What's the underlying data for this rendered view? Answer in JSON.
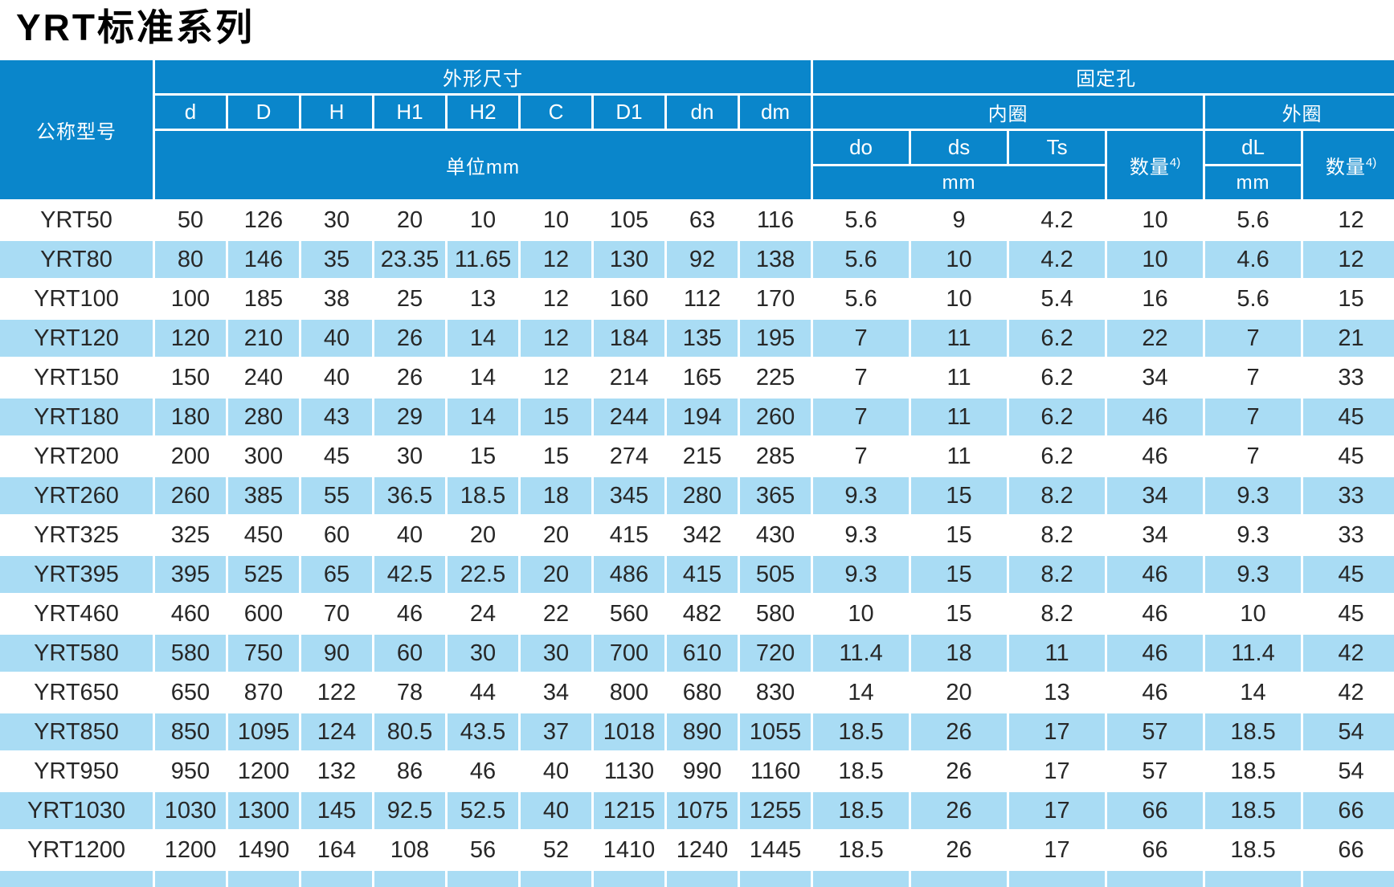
{
  "title": "YRT标准系列",
  "header": {
    "model_col": "公称型号",
    "dims_group": "外形尺寸",
    "holes_group": "固定孔",
    "dim_cols": [
      "d",
      "D",
      "H",
      "H1",
      "H2",
      "C",
      "D1",
      "dn",
      "dm"
    ],
    "dims_unit": "单位mm",
    "inner_ring": "内圈",
    "outer_ring": "外圈",
    "inner_cols": [
      "do",
      "ds",
      "Ts"
    ],
    "outer_col": "dL",
    "qty_label": "数量",
    "qty_superscript": "4)",
    "unit_mm": "mm"
  },
  "rows": [
    {
      "model": "YRT50",
      "values": [
        "50",
        "126",
        "30",
        "20",
        "10",
        "10",
        "105",
        "63",
        "116",
        "5.6",
        "9",
        "4.2",
        "10",
        "5.6",
        "12"
      ]
    },
    {
      "model": "YRT80",
      "values": [
        "80",
        "146",
        "35",
        "23.35",
        "11.65",
        "12",
        "130",
        "92",
        "138",
        "5.6",
        "10",
        "4.2",
        "10",
        "4.6",
        "12"
      ]
    },
    {
      "model": "YRT100",
      "values": [
        "100",
        "185",
        "38",
        "25",
        "13",
        "12",
        "160",
        "112",
        "170",
        "5.6",
        "10",
        "5.4",
        "16",
        "5.6",
        "15"
      ]
    },
    {
      "model": "YRT120",
      "values": [
        "120",
        "210",
        "40",
        "26",
        "14",
        "12",
        "184",
        "135",
        "195",
        "7",
        "11",
        "6.2",
        "22",
        "7",
        "21"
      ]
    },
    {
      "model": "YRT150",
      "values": [
        "150",
        "240",
        "40",
        "26",
        "14",
        "12",
        "214",
        "165",
        "225",
        "7",
        "11",
        "6.2",
        "34",
        "7",
        "33"
      ]
    },
    {
      "model": "YRT180",
      "values": [
        "180",
        "280",
        "43",
        "29",
        "14",
        "15",
        "244",
        "194",
        "260",
        "7",
        "11",
        "6.2",
        "46",
        "7",
        "45"
      ]
    },
    {
      "model": "YRT200",
      "values": [
        "200",
        "300",
        "45",
        "30",
        "15",
        "15",
        "274",
        "215",
        "285",
        "7",
        "11",
        "6.2",
        "46",
        "7",
        "45"
      ]
    },
    {
      "model": "YRT260",
      "values": [
        "260",
        "385",
        "55",
        "36.5",
        "18.5",
        "18",
        "345",
        "280",
        "365",
        "9.3",
        "15",
        "8.2",
        "34",
        "9.3",
        "33"
      ]
    },
    {
      "model": "YRT325",
      "values": [
        "325",
        "450",
        "60",
        "40",
        "20",
        "20",
        "415",
        "342",
        "430",
        "9.3",
        "15",
        "8.2",
        "34",
        "9.3",
        "33"
      ]
    },
    {
      "model": "YRT395",
      "values": [
        "395",
        "525",
        "65",
        "42.5",
        "22.5",
        "20",
        "486",
        "415",
        "505",
        "9.3",
        "15",
        "8.2",
        "46",
        "9.3",
        "45"
      ]
    },
    {
      "model": "YRT460",
      "values": [
        "460",
        "600",
        "70",
        "46",
        "24",
        "22",
        "560",
        "482",
        "580",
        "10",
        "15",
        "8.2",
        "46",
        "10",
        "45"
      ]
    },
    {
      "model": "YRT580",
      "values": [
        "580",
        "750",
        "90",
        "60",
        "30",
        "30",
        "700",
        "610",
        "720",
        "11.4",
        "18",
        "11",
        "46",
        "11.4",
        "42"
      ]
    },
    {
      "model": "YRT650",
      "values": [
        "650",
        "870",
        "122",
        "78",
        "44",
        "34",
        "800",
        "680",
        "830",
        "14",
        "20",
        "13",
        "46",
        "14",
        "42"
      ]
    },
    {
      "model": "YRT850",
      "values": [
        "850",
        "1095",
        "124",
        "80.5",
        "43.5",
        "37",
        "1018",
        "890",
        "1055",
        "18.5",
        "26",
        "17",
        "57",
        "18.5",
        "54"
      ]
    },
    {
      "model": "YRT950",
      "values": [
        "950",
        "1200",
        "132",
        "86",
        "46",
        "40",
        "1130",
        "990",
        "1160",
        "18.5",
        "26",
        "17",
        "57",
        "18.5",
        "54"
      ]
    },
    {
      "model": "YRT1030",
      "values": [
        "1030",
        "1300",
        "145",
        "92.5",
        "52.5",
        "40",
        "1215",
        "1075",
        "1255",
        "18.5",
        "26",
        "17",
        "66",
        "18.5",
        "66"
      ]
    },
    {
      "model": "YRT1200",
      "values": [
        "1200",
        "1490",
        "164",
        "108",
        "56",
        "52",
        "1410",
        "1240",
        "1445",
        "18.5",
        "26",
        "17",
        "66",
        "18.5",
        "66"
      ]
    }
  ],
  "colors": {
    "header_blue": "#0a86cb",
    "row_blue": "#a9dcf4",
    "row_white": "#ffffff",
    "text_dark": "#272727",
    "header_text": "#ffffff"
  }
}
